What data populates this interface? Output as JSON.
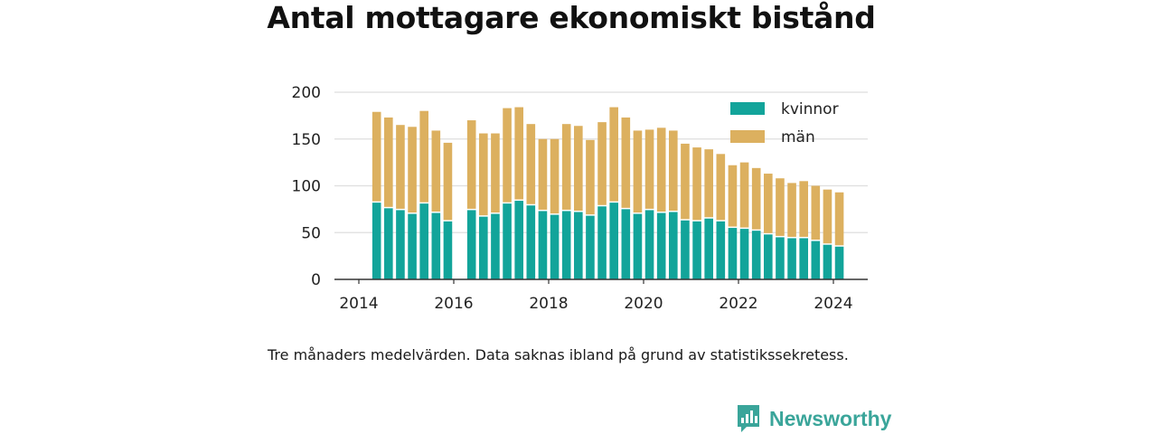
{
  "chart_data": {
    "type": "bar",
    "stacked": true,
    "title": "Antal mottagare ekonomiskt bistånd",
    "note": "Tre månaders medelvärden. Data saknas ibland på grund av statistikssekretess.",
    "ylim": [
      0,
      200
    ],
    "yticks": [
      0,
      50,
      100,
      150,
      200
    ],
    "xticks": [
      "2014",
      "2016",
      "2018",
      "2020",
      "2022",
      "2024"
    ],
    "x_range_years": [
      2014,
      2024
    ],
    "grid": "horizontal",
    "legend": "top-right",
    "series": [
      {
        "name": "kvinnor",
        "color": "#12a49a",
        "values": [
          82,
          76,
          74,
          70,
          81,
          71,
          62,
          null,
          74,
          67,
          70,
          81,
          84,
          79,
          73,
          69,
          73,
          72,
          68,
          78,
          82,
          75,
          70,
          74,
          71,
          72,
          63,
          62,
          65,
          62,
          55,
          54,
          52,
          48,
          45,
          44,
          44,
          41,
          37,
          35
        ]
      },
      {
        "name": "män",
        "color": "#dcb05f",
        "values": [
          97,
          97,
          91,
          93,
          99,
          88,
          84,
          null,
          96,
          89,
          86,
          102,
          100,
          87,
          77,
          81,
          93,
          92,
          81,
          90,
          102,
          98,
          89,
          86,
          91,
          87,
          82,
          79,
          74,
          72,
          67,
          71,
          67,
          65,
          63,
          59,
          61,
          59,
          59,
          58
        ]
      }
    ],
    "periods": [
      "2014-06",
      "2014-09",
      "2014-12",
      "2015-03",
      "2015-06",
      "2015-09",
      "2015-12",
      "2016-03",
      "2016-06",
      "2016-09",
      "2016-12",
      "2017-03",
      "2017-06",
      "2017-09",
      "2017-12",
      "2018-03",
      "2018-06",
      "2018-09",
      "2018-12",
      "2019-03",
      "2019-06",
      "2019-09",
      "2019-12",
      "2020-03",
      "2020-06",
      "2020-09",
      "2020-12",
      "2021-03",
      "2021-06",
      "2021-09",
      "2021-12",
      "2022-03",
      "2022-06",
      "2022-09",
      "2022-12",
      "2023-03",
      "2023-06",
      "2023-09",
      "2023-12",
      "2024-03"
    ]
  },
  "brand": {
    "name": "Newsworthy",
    "logo_icon": "newsworthy-chart-bubble-icon",
    "color": "#3aa59a"
  }
}
